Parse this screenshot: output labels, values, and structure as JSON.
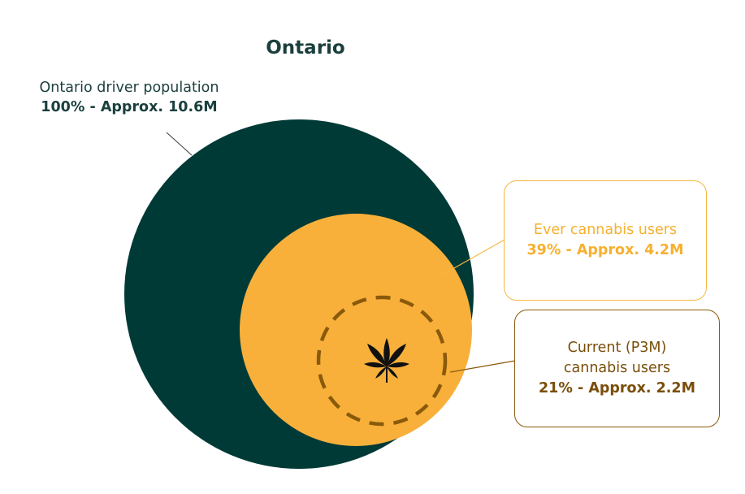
{
  "title": "Ontario",
  "colors": {
    "population_circle": "#003a36",
    "ever_circle": "#f8b03b",
    "current_ring": "#8a5a0b",
    "ever_text": "#f7b02f",
    "current_text": "#7a4e0a",
    "title_text": "#1a3f3d"
  },
  "population": {
    "label": "Ontario driver population",
    "stat": "100% - Approx. 10.6M"
  },
  "ever_users": {
    "label": "Ever cannabis users",
    "stat": "39% - Approx. 4.2M"
  },
  "current_users": {
    "label_line1": "Current (P3M)",
    "label_line2": "cannabis users",
    "stat": "21% - Approx. 2.2M"
  },
  "center_icon": "cannabis-leaf-icon"
}
